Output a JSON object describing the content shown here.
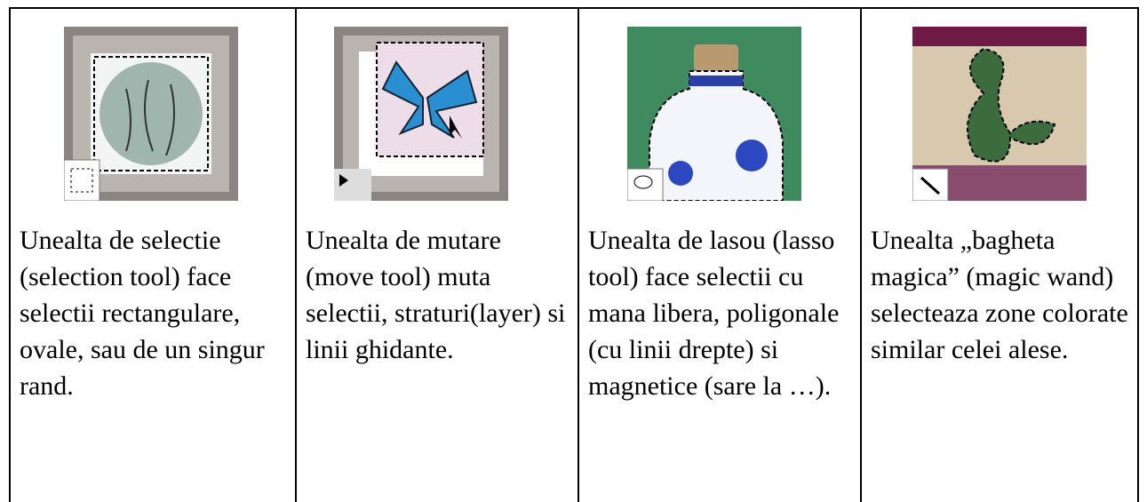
{
  "cells": [
    {
      "text": "Unealta de selectie (selection tool) face selectii rectangulare, ovale, sau de un singur rand."
    },
    {
      "text": "Unealta de mutare (move tool) muta selectii, straturi(layer) si linii ghidante."
    },
    {
      "text": "Unealta de lasou (lasso tool) face selectii cu mana libera, poligonale (cu linii drepte) si magnetice (sare la …)."
    },
    {
      "text": "Unealta „bagheta magica” (magic wand) selecteaza zone colorate similar celei alese."
    }
  ]
}
